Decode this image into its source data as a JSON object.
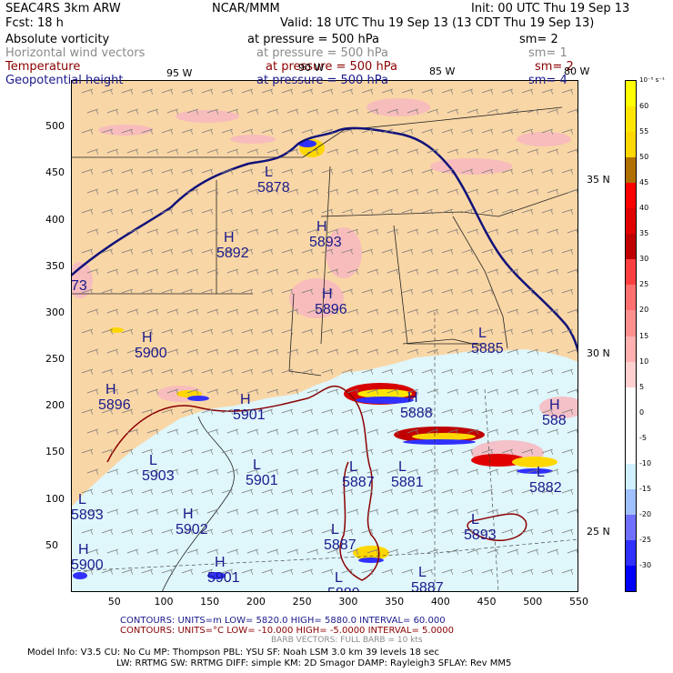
{
  "header": {
    "line1_left": "SEAC4RS  3km ARW",
    "line1_mid": "NCAR/MMM",
    "line1_right": "Init: 00 UTC Thu 19 Sep 13",
    "line2_left": "Fcst:   18 h",
    "line2_right": "Valid: 18 UTC Thu 19 Sep 13 (13 CDT Thu 19 Sep 13)"
  },
  "fields": [
    {
      "name": "Absolute vorticity",
      "pressure": "at pressure =  500 hPa",
      "sm": "sm= 2",
      "color": "#000000"
    },
    {
      "name": "Horizontal wind vectors",
      "pressure": "at pressure =  500 hPa",
      "sm": "sm= 1",
      "color": "#8a8a8a"
    },
    {
      "name": "Temperature",
      "pressure": "at pressure =  500 hPa",
      "sm": "sm= 2",
      "color": "#8b0000"
    },
    {
      "name": "Geopotential height",
      "pressure": "at pressure =  500 hPa",
      "sm": "sm= 4",
      "color": "#1a1a8c"
    }
  ],
  "map": {
    "lon_labels": [
      "95 W",
      "90 W",
      "85 W",
      "80 W"
    ],
    "lat_labels": [
      "35 N",
      "30 N",
      "25 N"
    ],
    "x_ticks": [
      "50",
      "100",
      "150",
      "200",
      "250",
      "300",
      "350",
      "400",
      "450",
      "500",
      "550"
    ],
    "y_ticks": [
      "500",
      "450",
      "400",
      "350",
      "300",
      "250",
      "200",
      "150",
      "100",
      "50"
    ],
    "height_labels": [
      {
        "type": "L",
        "value": "5878"
      },
      {
        "type": "H",
        "value": "5892"
      },
      {
        "type": "H",
        "value": "5893"
      },
      {
        "type": "H",
        "value": "5896"
      },
      {
        "type": "H",
        "value": "5900"
      },
      {
        "type": "H",
        "value": "5896"
      },
      {
        "type": "L",
        "value": "5885"
      },
      {
        "type": "H",
        "value": "5901"
      },
      {
        "type": "H",
        "value": "5888"
      },
      {
        "type": "H",
        "value": "588"
      },
      {
        "type": "L",
        "value": "5903"
      },
      {
        "type": "L",
        "value": "5901"
      },
      {
        "type": "L",
        "value": "5887"
      },
      {
        "type": "L",
        "value": "5881"
      },
      {
        "type": "L",
        "value": "5882"
      },
      {
        "type": "L",
        "value": "5893"
      },
      {
        "type": "H",
        "value": "5902"
      },
      {
        "type": "L",
        "value": "5893"
      },
      {
        "type": "L",
        "value": "5887"
      },
      {
        "type": "H",
        "value": "5900"
      },
      {
        "type": "H",
        "value": "5901"
      },
      {
        "type": "L",
        "value": "5887"
      },
      {
        "type": "L",
        "value": "5889"
      },
      {
        "type": "",
        "value": "73"
      }
    ]
  },
  "colorbar": {
    "unit": "10⁻⁵ s⁻¹",
    "levels": [
      "60",
      "55",
      "50",
      "45",
      "40",
      "35",
      "30",
      "25",
      "20",
      "15",
      "10",
      "5",
      "0",
      "-5",
      "-10",
      "-15",
      "-20",
      "-25",
      "-30"
    ],
    "colors": [
      "#ffff00",
      "#ffe600",
      "#ffd700",
      "#b07000",
      "#ff0000",
      "#e00000",
      "#c00000",
      "#ff4040",
      "#ff7070",
      "#ff9090",
      "#ffb0b0",
      "#ffd0d0",
      "#ffffff",
      "#ffffff",
      "#ffffff",
      "#d0f0ff",
      "#a0c0ff",
      "#7070ff",
      "#3030ff",
      "#0000ff"
    ]
  },
  "footer": {
    "contours_blue": "CONTOURS:  UNITS=m  LOW=  5820.0         HIGH=  5880.0         INTERVAL=   60.000",
    "contours_red": "CONTOURS:  UNITS=°C  LOW= -10.000         HIGH= -5.0000         INTERVAL=   5.0000",
    "barb": "BARB VECTORS:  FULL BARB = 10 kts",
    "model1": "Model Info: V3.5       CU: No Cu     MP: Thompson     PBL: YSU      SF: Noah LSM    3.0 km   39 levels   18 sec",
    "model2": "LW: RRTMG   SW: RRTMG  DIFF: simple KM: 2D Smagor DAMP: Rayleigh3   SFLAY: Rev MM5"
  }
}
